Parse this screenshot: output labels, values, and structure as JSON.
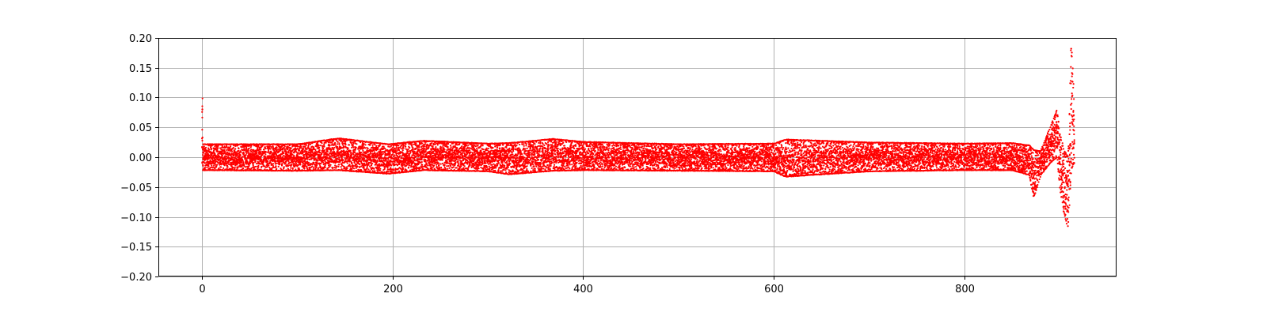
{
  "chart_data": {
    "type": "scatter",
    "title": "",
    "xlabel": "",
    "ylabel": "",
    "xlim": [
      -46,
      960
    ],
    "ylim": [
      -0.2,
      0.2
    ],
    "x_ticks": [
      0,
      200,
      400,
      600,
      800
    ],
    "x_tick_labels": [
      "0",
      "200",
      "400",
      "600",
      "800"
    ],
    "y_ticks": [
      -0.2,
      -0.15,
      -0.1,
      -0.05,
      0.0,
      0.05,
      0.1,
      0.15,
      0.2
    ],
    "y_tick_labels": [
      "−0.20",
      "−0.15",
      "−0.10",
      "−0.05",
      "0.00",
      "0.05",
      "0.10",
      "0.15",
      "0.20"
    ],
    "grid": true,
    "legend": "none",
    "series": [
      {
        "color": "#ff0000",
        "x_range": [
          0,
          915
        ],
        "envelope": [
          {
            "x": 0,
            "min": -0.022,
            "max": 0.022
          },
          {
            "x": 100,
            "min": -0.023,
            "max": 0.022
          },
          {
            "x": 143,
            "min": -0.022,
            "max": 0.032
          },
          {
            "x": 195,
            "min": -0.028,
            "max": 0.022
          },
          {
            "x": 233,
            "min": -0.022,
            "max": 0.028
          },
          {
            "x": 300,
            "min": -0.024,
            "max": 0.023
          },
          {
            "x": 322,
            "min": -0.029,
            "max": 0.024
          },
          {
            "x": 368,
            "min": -0.023,
            "max": 0.031
          },
          {
            "x": 400,
            "min": -0.022,
            "max": 0.026
          },
          {
            "x": 500,
            "min": -0.023,
            "max": 0.022
          },
          {
            "x": 600,
            "min": -0.024,
            "max": 0.023
          },
          {
            "x": 612,
            "min": -0.033,
            "max": 0.03
          },
          {
            "x": 700,
            "min": -0.024,
            "max": 0.025
          },
          {
            "x": 800,
            "min": -0.022,
            "max": 0.023
          },
          {
            "x": 850,
            "min": -0.022,
            "max": 0.024
          },
          {
            "x": 868,
            "min": -0.03,
            "max": 0.02
          },
          {
            "x": 873,
            "min": -0.068,
            "max": 0.012
          },
          {
            "x": 880,
            "min": -0.03,
            "max": 0.01
          },
          {
            "x": 890,
            "min": -0.01,
            "max": 0.05
          },
          {
            "x": 897,
            "min": 0.0,
            "max": 0.08
          },
          {
            "x": 900,
            "min": -0.05,
            "max": 0.04
          },
          {
            "x": 905,
            "min": -0.1,
            "max": 0.01
          },
          {
            "x": 909,
            "min": -0.118,
            "max": 0.0
          },
          {
            "x": 912,
            "min": -0.02,
            "max": 0.197
          },
          {
            "x": 915,
            "min": -0.01,
            "max": 0.1
          }
        ]
      }
    ]
  }
}
